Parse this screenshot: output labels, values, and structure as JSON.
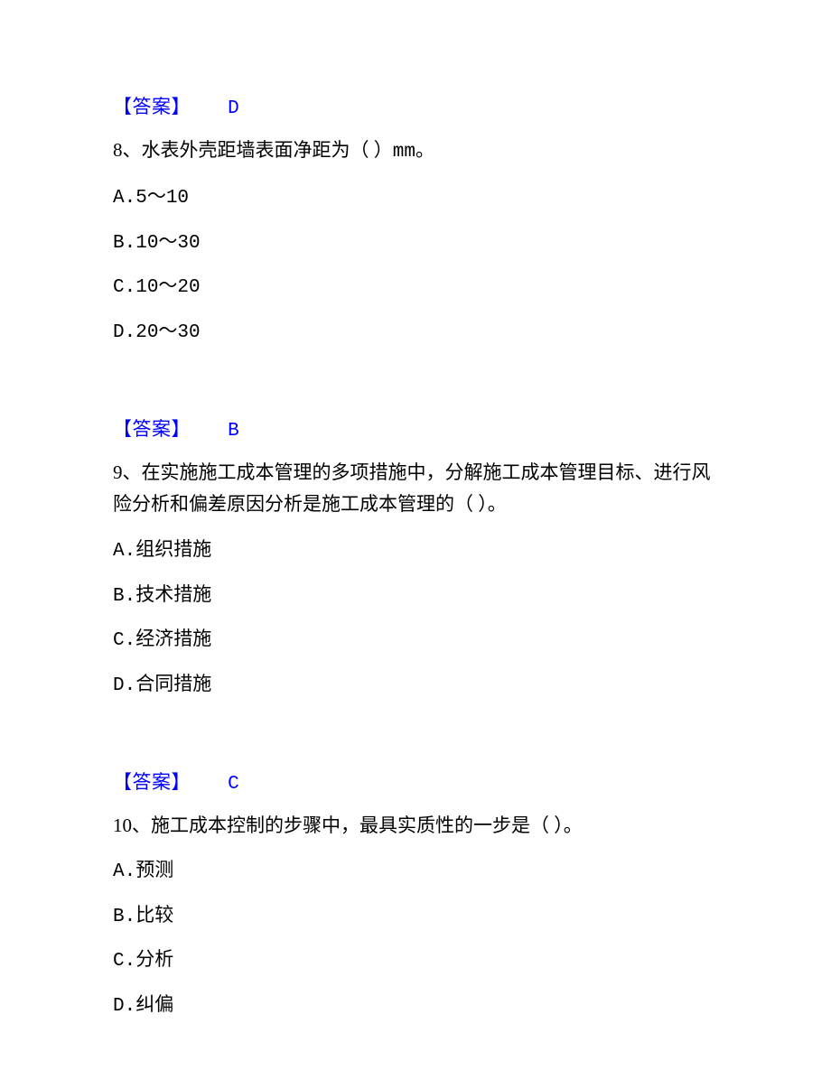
{
  "colors": {
    "answer_text": "#0000ff",
    "body_text": "#000000",
    "background": "#ffffff"
  },
  "typography": {
    "body_font_family": "SimSun",
    "mono_font_family": "Courier New",
    "body_fontsize_pt": 16,
    "line_height": 1.6
  },
  "answers": {
    "label": "【答案】",
    "a7_letter": "D",
    "a8_letter": "B",
    "a9_letter": "C"
  },
  "q8": {
    "number": "8、",
    "stem_before": "水表外壳距墙表面净距为（  ）",
    "unit": "mm",
    "stem_after": "。",
    "options": {
      "A": {
        "label": "A.",
        "text": "5～10"
      },
      "B": {
        "label": "B.",
        "text": "10～30"
      },
      "C": {
        "label": "C.",
        "text": "10～20"
      },
      "D": {
        "label": "D.",
        "text": "20～30"
      }
    }
  },
  "q9": {
    "number": "9、",
    "stem": "在实施施工成本管理的多项措施中，分解施工成本管理目标、进行风险分析和偏差原因分析是施工成本管理的（  ）。",
    "options": {
      "A": {
        "label": "A.",
        "text": "组织措施"
      },
      "B": {
        "label": "B.",
        "text": "技术措施"
      },
      "C": {
        "label": "C.",
        "text": "经济措施"
      },
      "D": {
        "label": "D.",
        "text": "合同措施"
      }
    }
  },
  "q10": {
    "number": "10、",
    "stem": "施工成本控制的步骤中，最具实质性的一步是（  ）。",
    "options": {
      "A": {
        "label": "A.",
        "text": "预测"
      },
      "B": {
        "label": "B.",
        "text": "比较"
      },
      "C": {
        "label": "C.",
        "text": "分析"
      },
      "D": {
        "label": "D.",
        "text": "纠偏"
      }
    }
  }
}
